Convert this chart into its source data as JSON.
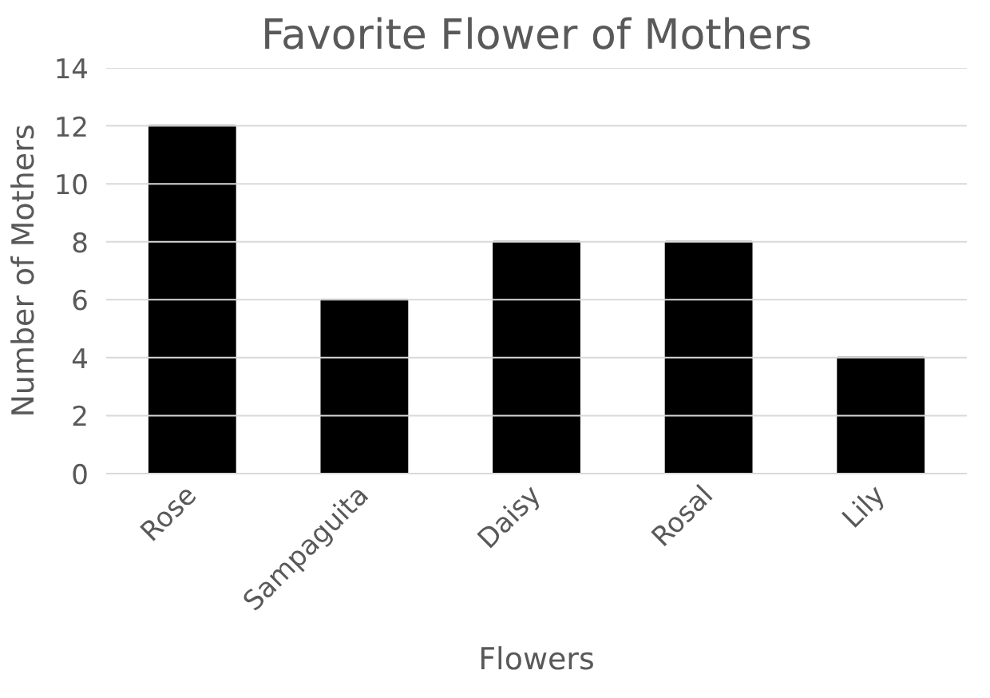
{
  "chart_data": {
    "type": "bar",
    "title": "Favorite Flower of Mothers",
    "xlabel": "Flowers",
    "ylabel": "Number of Mothers",
    "categories": [
      "Rose",
      "Sampaguita",
      "Daisy",
      "Rosal",
      "Lily"
    ],
    "values": [
      12,
      6,
      8,
      8,
      4
    ],
    "color": "#000000",
    "ylim": [
      0,
      14
    ],
    "yticks": [
      0,
      2,
      4,
      6,
      8,
      10,
      12,
      14
    ],
    "grid": "y"
  }
}
